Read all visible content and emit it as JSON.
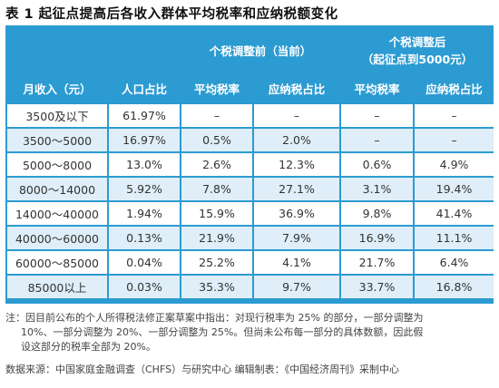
{
  "title": "表 1  起征点提高后各收入群体平均税率和应纳税额变化",
  "table": {
    "header": {
      "group_before": "个税调整前（当前）",
      "group_after_line1": "个税调整后",
      "group_after_line2": "（起征点到5000元）",
      "col_income": "月收入（元）",
      "col_population": "人口占比",
      "col_avg_rate_before": "平均税率",
      "col_tax_share_before": "应纳税占比",
      "col_avg_rate_after": "平均税率",
      "col_tax_share_after": "应纳税占比"
    },
    "rows": [
      {
        "income": "3500及以下",
        "population": "61.97%",
        "rate_before": "–",
        "share_before": "–",
        "rate_after": "–",
        "share_after": "–"
      },
      {
        "income": "3500～5000",
        "population": "16.97%",
        "rate_before": "0.5%",
        "share_before": "2.0%",
        "rate_after": "–",
        "share_after": "–"
      },
      {
        "income": "5000～8000",
        "population": "13.0%",
        "rate_before": "2.6%",
        "share_before": "12.3%",
        "rate_after": "0.6%",
        "share_after": "4.9%"
      },
      {
        "income": "8000～14000",
        "population": "5.92%",
        "rate_before": "7.8%",
        "share_before": "27.1%",
        "rate_after": "3.1%",
        "share_after": "19.4%"
      },
      {
        "income": "14000～40000",
        "population": "1.94%",
        "rate_before": "15.9%",
        "share_before": "36.9%",
        "rate_after": "9.8%",
        "share_after": "41.4%"
      },
      {
        "income": "40000～60000",
        "population": "0.13%",
        "rate_before": "21.9%",
        "share_before": "7.9%",
        "rate_after": "16.9%",
        "share_after": "11.1%"
      },
      {
        "income": "60000～85000",
        "population": "0.04%",
        "rate_before": "25.2%",
        "share_before": "4.1%",
        "rate_after": "21.7%",
        "share_after": "6.4%"
      },
      {
        "income": "85000以上",
        "population": "0.03%",
        "rate_before": "35.3%",
        "share_before": "9.7%",
        "rate_after": "33.7%",
        "share_after": "16.8%"
      }
    ]
  },
  "note": {
    "line1": "注：因目前公布的个人所得税法修正案草案中指出：对现行税率为 25% 的部分，一部分调整为",
    "line2": "10%、一部分调整为 20%、一部分调整为 25%。但尚未公布每一部分的具体数额，因此假",
    "line3": "设这部分的税率全部为 20%。"
  },
  "source": "数据来源：中国家庭金融调查（CHFS）与研究中心    编辑制表：《中国经济周刊》采制中心"
}
